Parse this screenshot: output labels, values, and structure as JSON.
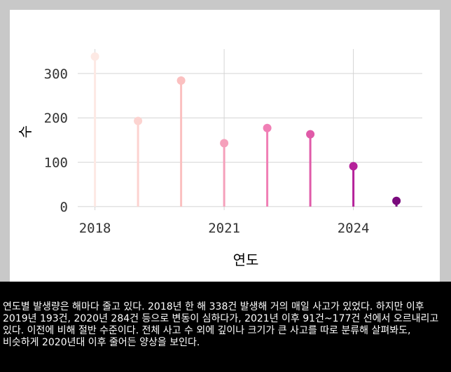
{
  "chart_data": {
    "type": "lollipop",
    "x": [
      2018,
      2019,
      2020,
      2021,
      2022,
      2023,
      2024,
      2025
    ],
    "values": [
      338,
      193,
      284,
      143,
      177,
      163,
      91,
      13
    ],
    "colors": [
      "#fde9e4",
      "#fcd3d0",
      "#fbc0c0",
      "#f5a0bb",
      "#f07fb5",
      "#e05aa8",
      "#b5229a",
      "#7a0a7d"
    ],
    "xlabel": "연도",
    "ylabel": "수",
    "xticks": [
      2018,
      2021,
      2024
    ],
    "yticks": [
      0,
      100,
      200,
      300
    ],
    "xlim": [
      2017.6,
      2025.6
    ],
    "ylim": [
      -8,
      355
    ],
    "grid": true
  },
  "caption": "연도별 발생량은 해마다 줄고 있다. 2018년 한 해 338건 발생해 거의 매일 사고가 있었다. 하지만 이후 2019년 193건, 2020년 284건 등으로 변동이 심하다가, 2021년 이후 91건~177건 선에서 오르내리고 있다. 이전에 비해 절반 수준이다. 전체 사고 수 외에 깊이나 크기가 큰 사고를 따로 분류해 살펴봐도, 비슷하게 2020년대 이후 줄어든 양상을 보인다."
}
